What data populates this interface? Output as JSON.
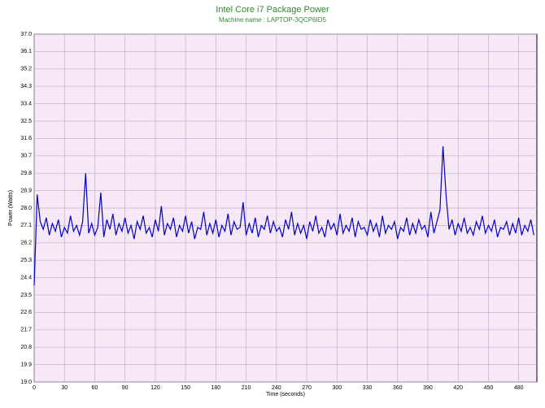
{
  "chart_data": {
    "type": "line",
    "title": "Intel Core i7 Package Power",
    "subtitle": "Machine name : LAPTOP-3QCP6ID5",
    "xlabel": "Time (seconds)",
    "ylabel": "Power (Watts)",
    "x": [
      0,
      3,
      6,
      9,
      12,
      15,
      18,
      21,
      24,
      27,
      30,
      33,
      36,
      39,
      42,
      45,
      48,
      51,
      54,
      57,
      60,
      63,
      66,
      69,
      72,
      75,
      78,
      81,
      84,
      87,
      90,
      93,
      96,
      99,
      102,
      105,
      108,
      111,
      114,
      117,
      120,
      123,
      126,
      129,
      132,
      135,
      138,
      141,
      144,
      147,
      150,
      153,
      156,
      159,
      162,
      165,
      168,
      171,
      174,
      177,
      180,
      183,
      186,
      189,
      192,
      195,
      198,
      201,
      204,
      207,
      210,
      213,
      216,
      219,
      222,
      225,
      228,
      231,
      234,
      237,
      240,
      243,
      246,
      249,
      252,
      255,
      258,
      261,
      264,
      267,
      270,
      273,
      276,
      279,
      282,
      285,
      288,
      291,
      294,
      297,
      300,
      303,
      306,
      309,
      312,
      315,
      318,
      321,
      324,
      327,
      330,
      333,
      336,
      339,
      342,
      345,
      348,
      351,
      354,
      357,
      360,
      363,
      366,
      369,
      372,
      375,
      378,
      381,
      384,
      387,
      390,
      393,
      396,
      399,
      402,
      405,
      408,
      411,
      414,
      417,
      420,
      423,
      426,
      429,
      432,
      435,
      438,
      441,
      444,
      447,
      450,
      453,
      456,
      459,
      462,
      465,
      468,
      471,
      474,
      477,
      480,
      483,
      486,
      489,
      492,
      495
    ],
    "series": [
      {
        "name": "Package Power",
        "color": "#0000cc",
        "values": [
          24.0,
          28.7,
          27.3,
          26.9,
          27.5,
          26.6,
          27.2,
          26.8,
          27.4,
          26.5,
          27.0,
          26.7,
          27.6,
          26.8,
          27.1,
          26.6,
          27.3,
          29.8,
          26.7,
          27.2,
          26.6,
          27.0,
          28.8,
          26.5,
          27.4,
          26.9,
          27.7,
          26.6,
          27.2,
          26.8,
          27.5,
          26.7,
          27.1,
          26.4,
          27.3,
          26.9,
          27.6,
          26.7,
          27.0,
          26.5,
          27.4,
          26.8,
          28.1,
          26.6,
          27.2,
          26.9,
          27.5,
          26.5,
          27.1,
          26.8,
          27.6,
          26.7,
          27.3,
          26.4,
          27.0,
          26.9,
          27.8,
          26.6,
          27.2,
          26.7,
          27.4,
          26.5,
          27.1,
          26.8,
          27.7,
          26.6,
          27.3,
          26.9,
          27.0,
          28.3,
          26.6,
          27.2,
          26.7,
          27.5,
          26.5,
          27.1,
          26.9,
          27.6,
          26.7,
          27.3,
          26.8,
          27.0,
          26.5,
          27.4,
          26.9,
          27.8,
          26.6,
          27.2,
          26.7,
          27.1,
          26.4,
          27.3,
          26.8,
          27.6,
          26.7,
          27.0,
          26.5,
          27.4,
          26.9,
          27.2,
          26.6,
          27.7,
          26.7,
          27.1,
          26.8,
          27.5,
          26.5,
          27.3,
          26.9,
          27.0,
          26.6,
          27.4,
          26.8,
          27.2,
          26.5,
          27.6,
          26.7,
          27.1,
          26.9,
          27.3,
          26.4,
          27.0,
          26.8,
          27.5,
          26.6,
          27.2,
          26.7,
          27.4,
          26.9,
          27.1,
          26.5,
          27.8,
          26.7,
          27.3,
          27.9,
          31.2,
          28.7,
          26.9,
          27.4,
          26.6,
          27.2,
          26.8,
          27.5,
          26.7,
          27.0,
          26.6,
          27.3,
          26.9,
          27.6,
          26.7,
          27.1,
          26.8,
          27.4,
          26.5,
          27.0,
          26.9,
          27.3,
          26.6,
          27.2,
          26.7,
          27.5,
          26.6,
          27.1,
          26.8,
          27.4,
          26.6
        ]
      }
    ],
    "xlim": [
      0,
      498
    ],
    "ylim": [
      19,
      37
    ],
    "xticks": [
      0,
      30,
      60,
      90,
      120,
      150,
      180,
      210,
      240,
      270,
      300,
      330,
      360,
      390,
      420,
      450,
      480
    ],
    "yticks": [
      {
        "value": 19,
        "label": "19.0"
      },
      19.9,
      20.8,
      21.7,
      22.6,
      23.5,
      24.4,
      25.3,
      26.2,
      27.1,
      {
        "value": 28,
        "label": "28.0"
      },
      28.9,
      29.8,
      30.7,
      31.6,
      32.5,
      33.4,
      34.3,
      35.2,
      36.1,
      {
        "value": 37,
        "label": "37.0"
      }
    ],
    "grid": true
  }
}
